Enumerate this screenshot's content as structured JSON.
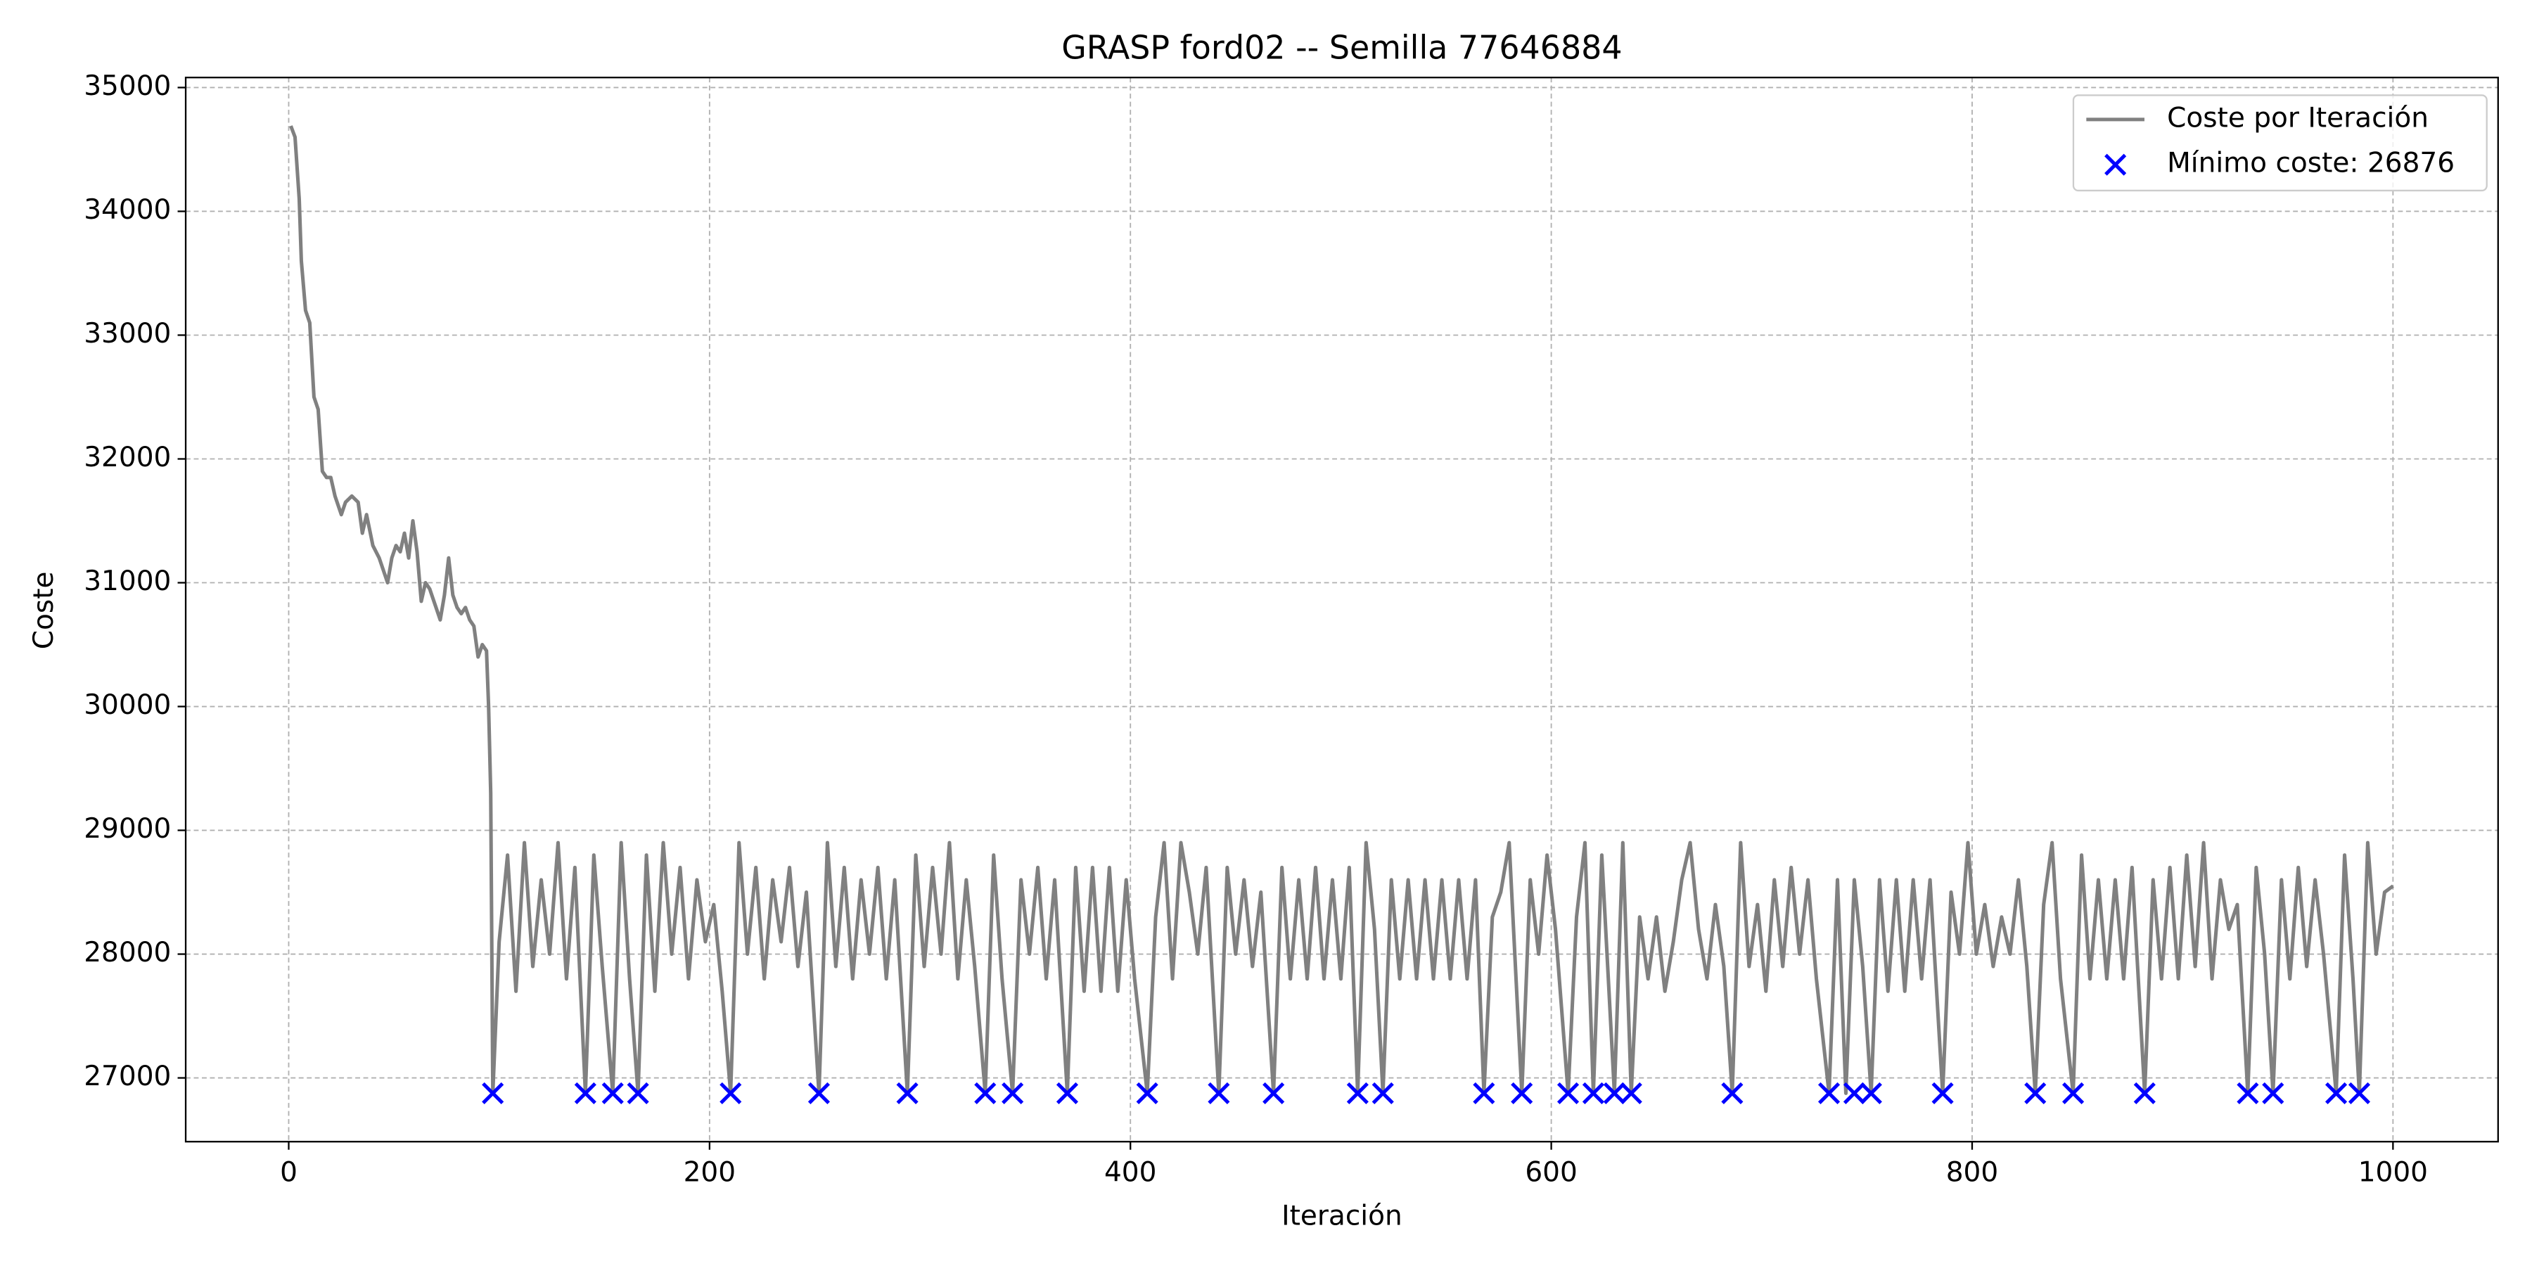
{
  "chart_data": {
    "type": "line",
    "title": "GRASP ford02 -- Semilla 77646884",
    "xlabel": "Iteración",
    "ylabel": "Coste",
    "xlim": [
      -48.95,
      1049.95
    ],
    "ylim": [
      26485,
      35081
    ],
    "xticks": [
      0,
      200,
      400,
      600,
      800,
      1000
    ],
    "yticks": [
      27000,
      28000,
      29000,
      30000,
      31000,
      32000,
      33000,
      34000,
      35000
    ],
    "grid": true,
    "legend": "upper right",
    "series": [
      {
        "name": "Coste por Iteración",
        "type": "line",
        "color": "#808080",
        "x": [
          1,
          3,
          5,
          6,
          8,
          10,
          12,
          14,
          16,
          18,
          20,
          22,
          25,
          27,
          30,
          33,
          35,
          37,
          40,
          43,
          45,
          47,
          49,
          51,
          53,
          55,
          57,
          59,
          61,
          63,
          65,
          67,
          70,
          72,
          74,
          76,
          78,
          80,
          82,
          84,
          86,
          88,
          90,
          92,
          94,
          95,
          96,
          97,
          100,
          104,
          108,
          112,
          116,
          120,
          124,
          128,
          132,
          136,
          141,
          145,
          149,
          154,
          158,
          162,
          166,
          170,
          174,
          178,
          182,
          186,
          190,
          194,
          198,
          202,
          206,
          210,
          214,
          218,
          222,
          226,
          230,
          234,
          238,
          242,
          246,
          252,
          256,
          260,
          264,
          268,
          272,
          276,
          280,
          284,
          288,
          294,
          298,
          302,
          306,
          310,
          314,
          318,
          322,
          326,
          331,
          335,
          339,
          344,
          348,
          352,
          356,
          360,
          364,
          370,
          374,
          378,
          382,
          386,
          390,
          394,
          398,
          402,
          408,
          412,
          416,
          420,
          424,
          428,
          432,
          436,
          442,
          446,
          450,
          454,
          458,
          462,
          468,
          472,
          476,
          480,
          484,
          488,
          492,
          496,
          500,
          504,
          508,
          512,
          516,
          520,
          524,
          528,
          532,
          536,
          540,
          544,
          548,
          552,
          556,
          560,
          564,
          568,
          572,
          576,
          580,
          586,
          590,
          594,
          598,
          602,
          608,
          612,
          616,
          620,
          624,
          630,
          634,
          638,
          642,
          646,
          650,
          654,
          658,
          662,
          666,
          670,
          674,
          678,
          682,
          686,
          690,
          694,
          698,
          702,
          706,
          710,
          714,
          718,
          722,
          726,
          732,
          736,
          740,
          744,
          748,
          752,
          756,
          760,
          764,
          768,
          772,
          776,
          780,
          786,
          790,
          794,
          798,
          802,
          806,
          810,
          814,
          818,
          822,
          826,
          830,
          834,
          838,
          842,
          848,
          852,
          856,
          860,
          864,
          868,
          872,
          876,
          882,
          886,
          890,
          894,
          898,
          902,
          906,
          910,
          914,
          918,
          922,
          926,
          931,
          935,
          939,
          943,
          947,
          951,
          955,
          959,
          963,
          967,
          973,
          977,
          981,
          984,
          988,
          992,
          996,
          1000
        ],
        "values": [
          34690,
          34600,
          34100,
          33600,
          33200,
          33100,
          32500,
          32400,
          31900,
          31850,
          31850,
          31700,
          31550,
          31650,
          31700,
          31650,
          31400,
          31550,
          31300,
          31200,
          31100,
          31000,
          31200,
          31300,
          31250,
          31400,
          31200,
          31500,
          31250,
          30850,
          31000,
          30950,
          30800,
          30700,
          30900,
          31200,
          30900,
          30800,
          30750,
          30800,
          30700,
          30650,
          30400,
          30500,
          30450,
          30000,
          29300,
          26876,
          28100,
          28800,
          27700,
          28900,
          27900,
          28600,
          28000,
          28900,
          27800,
          28700,
          26876,
          28800,
          27900,
          26876,
          28900,
          27800,
          26876,
          28800,
          27700,
          28900,
          28000,
          28700,
          27800,
          28600,
          28100,
          28400,
          27700,
          26876,
          28900,
          28000,
          28700,
          27800,
          28600,
          28100,
          28700,
          27900,
          28500,
          26876,
          28900,
          27900,
          28700,
          27800,
          28600,
          28000,
          28700,
          27800,
          28600,
          26876,
          28800,
          27900,
          28700,
          28000,
          28900,
          27800,
          28600,
          27900,
          26876,
          28800,
          27800,
          26876,
          28600,
          28000,
          28700,
          27800,
          28600,
          26876,
          28700,
          27700,
          28700,
          27700,
          28700,
          27700,
          28600,
          27800,
          26876,
          28300,
          28900,
          27800,
          28900,
          28500,
          28000,
          28700,
          26876,
          28700,
          28000,
          28600,
          27900,
          28500,
          26876,
          28700,
          27800,
          28600,
          27800,
          28700,
          27800,
          28600,
          27800,
          28700,
          26876,
          28900,
          28200,
          26876,
          28600,
          27800,
          28600,
          27800,
          28600,
          27800,
          28600,
          27800,
          28600,
          27800,
          28600,
          26876,
          28300,
          28500,
          28900,
          26876,
          28600,
          28000,
          28800,
          28200,
          26876,
          28300,
          28900,
          26876,
          28800,
          26876,
          28900,
          26876,
          28300,
          27800,
          28300,
          27700,
          28100,
          28600,
          28900,
          28200,
          27800,
          28400,
          27900,
          26876,
          28900,
          27900,
          28400,
          27700,
          28600,
          27900,
          28700,
          28000,
          28600,
          27800,
          26876,
          28600,
          26876,
          28600,
          27900,
          26876,
          28600,
          27700,
          28600,
          27700,
          28600,
          27800,
          28600,
          26876,
          28500,
          28000,
          28900,
          28000,
          28400,
          27900,
          28300,
          28000,
          28600,
          27900,
          26876,
          28400,
          28900,
          27800,
          26876,
          28800,
          27800,
          28600,
          27800,
          28600,
          27800,
          28700,
          26876,
          28600,
          27800,
          28700,
          27800,
          28800,
          27900,
          28900,
          27800,
          28600,
          28200,
          28400,
          26876,
          28700,
          28000,
          26876,
          28600,
          27800,
          28700,
          27900,
          28600,
          28000,
          26876,
          28800,
          27800,
          26876,
          28900,
          28000,
          28500,
          28550
        ]
      },
      {
        "name": "Mínimo coste: 26876",
        "type": "scatter",
        "color": "#0000ff",
        "x": [
          97,
          141,
          154,
          166,
          210,
          252,
          294,
          331,
          344,
          370,
          408,
          442,
          468,
          508,
          520,
          568,
          586,
          608,
          620,
          630,
          638,
          686,
          732,
          744,
          752,
          786,
          830,
          848,
          882,
          931,
          943,
          973,
          984
        ],
        "values": [
          26876,
          26876,
          26876,
          26876,
          26876,
          26876,
          26876,
          26876,
          26876,
          26876,
          26876,
          26876,
          26876,
          26876,
          26876,
          26876,
          26876,
          26876,
          26876,
          26876,
          26876,
          26876,
          26876,
          26876,
          26876,
          26876,
          26876,
          26876,
          26876,
          26876,
          26876,
          26876,
          26876
        ]
      }
    ]
  }
}
